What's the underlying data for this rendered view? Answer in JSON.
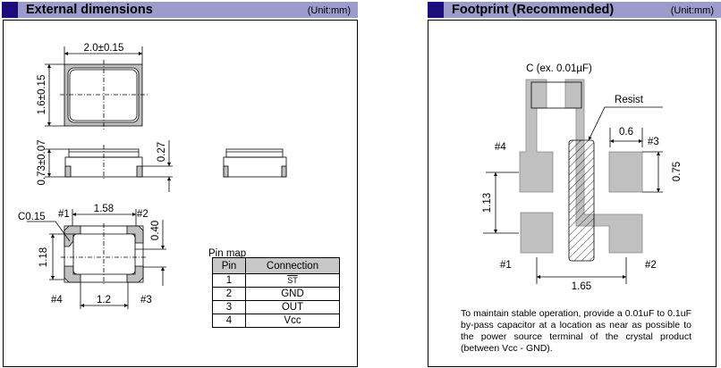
{
  "left_panel": {
    "title": "External dimensions",
    "unit": "(Unit:mm)",
    "dims": {
      "width": "2.0±0.15",
      "height": "1.6±0.15",
      "thickness": "0.73±0.07",
      "cap_height": "0.27",
      "pad_pitch_x": "1.58",
      "pad_gap_x": "1.2",
      "pad_pitch_y": "1.18",
      "pad_gap_y": "0.40",
      "chamfer": "C0.15"
    },
    "pins": [
      "#1",
      "#2",
      "#3",
      "#4"
    ],
    "pin_map": {
      "title": "Pin map",
      "headers": [
        "Pin",
        "Connection"
      ],
      "rows": [
        {
          "pin": "1",
          "connection": "ST"
        },
        {
          "pin": "2",
          "connection": "GND"
        },
        {
          "pin": "3",
          "connection": "OUT"
        },
        {
          "pin": "4",
          "connection": "Vcc"
        }
      ]
    }
  },
  "right_panel": {
    "title": "Footprint (Recommended)",
    "unit": "(Unit:mm)",
    "capacitor_label": "C (ex. 0.01µF)",
    "resist_label": "Resist",
    "dims": {
      "pad_width": "0.6",
      "pad_height": "0.75",
      "pitch_y": "1.13",
      "pitch_x": "1.65"
    },
    "pins": [
      "#1",
      "#2",
      "#3",
      "#4"
    ],
    "note": "To maintain stable operation, provide a 0.01uF to 0.1uF by-pass capacitor at a location as near as possible to the power source terminal of the crystal product (between Vcc - GND)."
  },
  "colors": {
    "header_bar": "#9c9ccc",
    "header_square": "#1c0c7c",
    "pad_gray": "#c0c0c0"
  }
}
